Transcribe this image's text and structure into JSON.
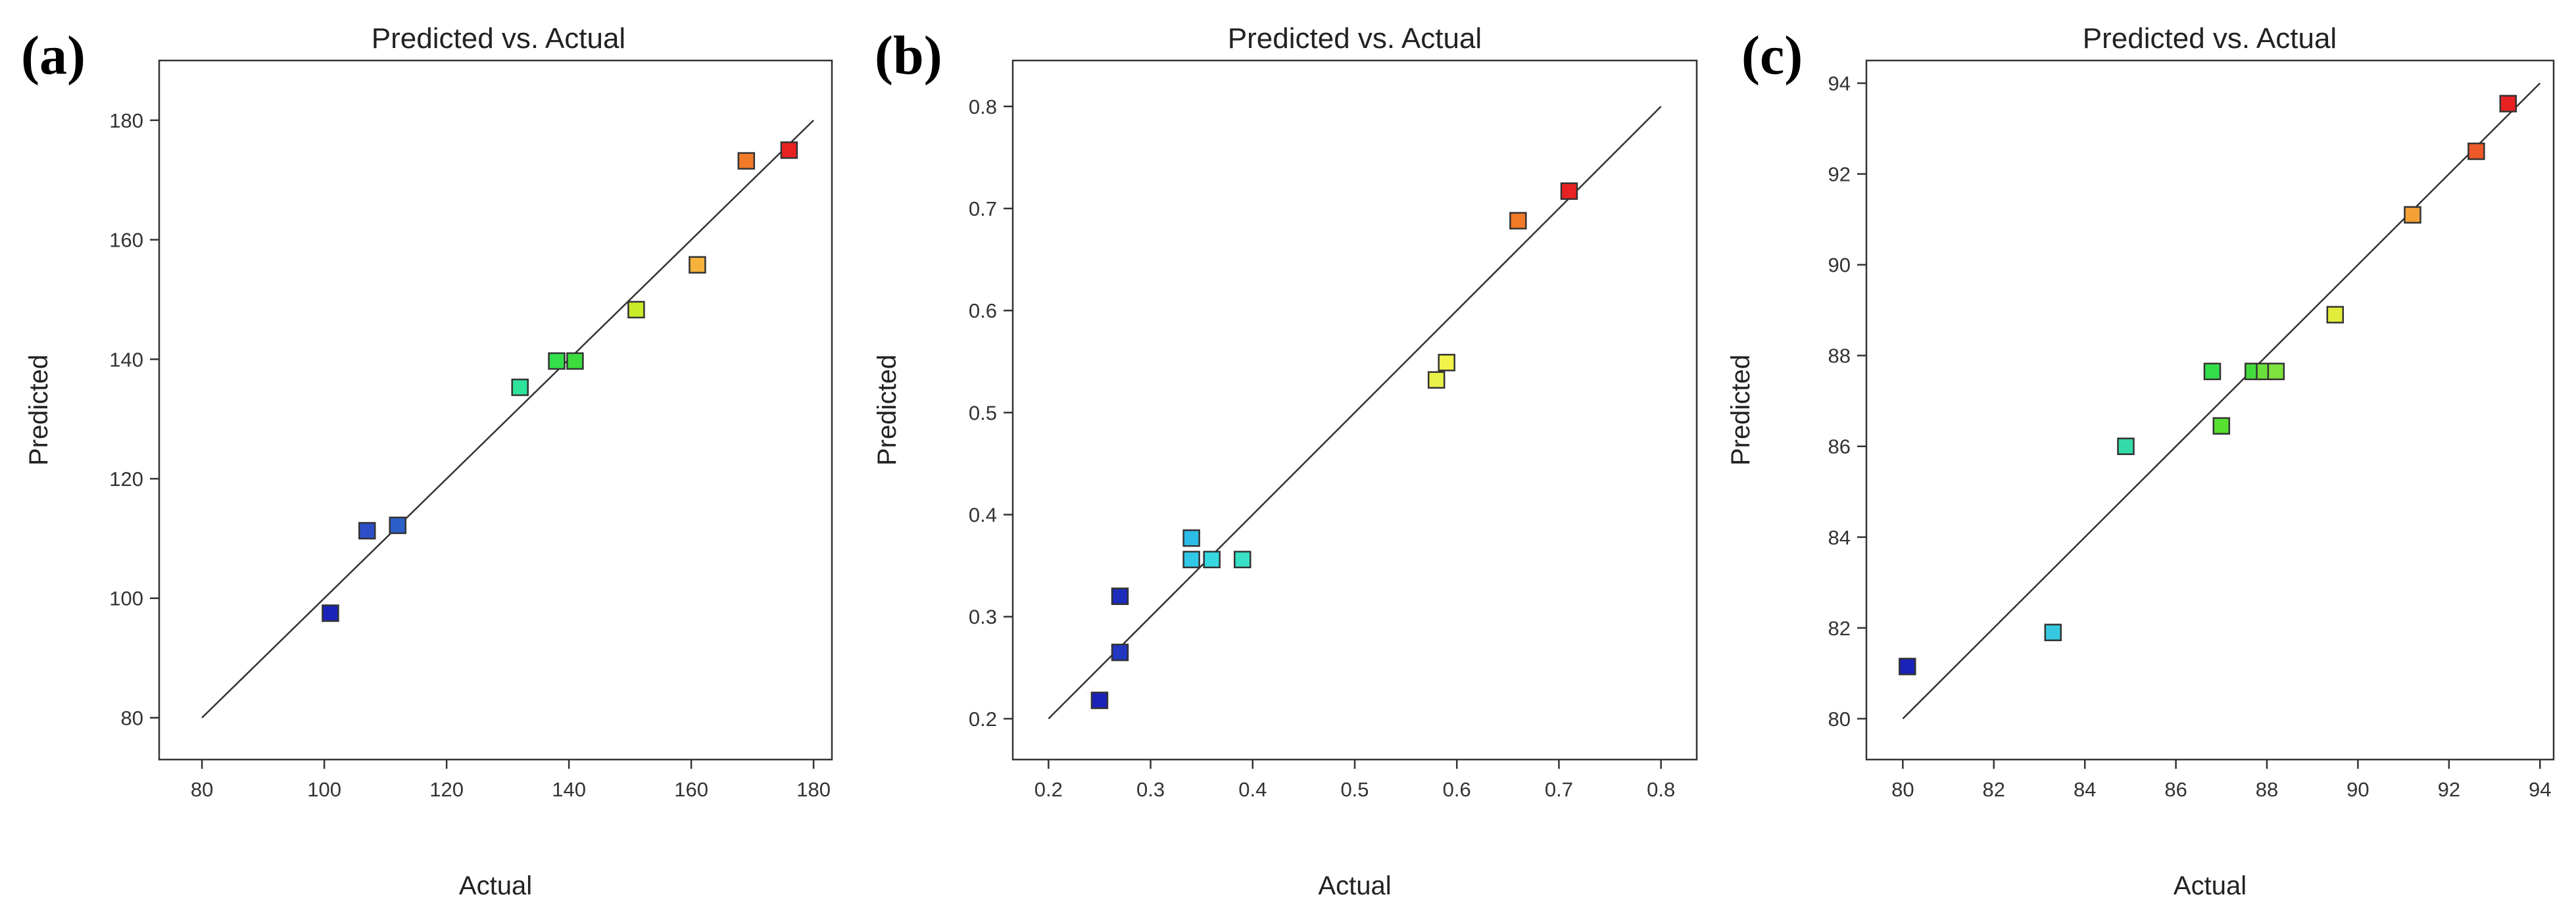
{
  "chart_data": [
    {
      "panel": "(a)",
      "type": "scatter",
      "title": "Predicted vs. Actual",
      "xlabel": "Actual",
      "ylabel": "Predicted",
      "xlim": [
        73,
        183
      ],
      "ylim": [
        73,
        190
      ],
      "xticks": [
        80,
        100,
        120,
        140,
        160,
        180
      ],
      "yticks": [
        80,
        100,
        120,
        140,
        160,
        180
      ],
      "fit_line": [
        [
          80,
          80
        ],
        [
          180,
          180
        ]
      ],
      "points": [
        {
          "x": 101,
          "y": 97.5,
          "color": "#1a22b8"
        },
        {
          "x": 107,
          "y": 111.3,
          "color": "#2d50c8"
        },
        {
          "x": 112,
          "y": 112.2,
          "color": "#2d5fc8"
        },
        {
          "x": 132,
          "y": 135.3,
          "color": "#2ee39a"
        },
        {
          "x": 138,
          "y": 139.7,
          "color": "#34df4c"
        },
        {
          "x": 141,
          "y": 139.7,
          "color": "#3ddc3d"
        },
        {
          "x": 151,
          "y": 148.3,
          "color": "#c8ec2a"
        },
        {
          "x": 161,
          "y": 155.8,
          "color": "#f5b33c"
        },
        {
          "x": 169,
          "y": 173.2,
          "color": "#f07a28"
        },
        {
          "x": 176,
          "y": 175,
          "color": "#e82222"
        }
      ]
    },
    {
      "panel": "(b)",
      "type": "scatter",
      "title": "Predicted vs. Actual",
      "xlabel": "Actual",
      "ylabel": "Predicted",
      "xlim": [
        0.165,
        0.835
      ],
      "ylim": [
        0.16,
        0.845
      ],
      "xticks": [
        0.2,
        0.3,
        0.4,
        0.5,
        0.6,
        0.7,
        0.8
      ],
      "xtick_labels": [
        "0.2",
        "0.3",
        "0.4",
        "0.5",
        "0.6",
        "0.7",
        "0.8"
      ],
      "yticks": [
        0.2,
        0.3,
        0.4,
        0.5,
        0.6,
        0.7,
        0.8
      ],
      "ytick_labels": [
        "0.2",
        "0.3",
        "0.4",
        "0.5",
        "0.6",
        "0.7",
        "0.8"
      ],
      "fit_line": [
        [
          0.2,
          0.2
        ],
        [
          0.8,
          0.8
        ]
      ],
      "points": [
        {
          "x": 0.25,
          "y": 0.218,
          "color": "#1a22b8"
        },
        {
          "x": 0.27,
          "y": 0.265,
          "color": "#2238c0"
        },
        {
          "x": 0.27,
          "y": 0.32,
          "color": "#1e2cbc"
        },
        {
          "x": 0.34,
          "y": 0.377,
          "color": "#2bbde8"
        },
        {
          "x": 0.34,
          "y": 0.356,
          "color": "#2fc8e6"
        },
        {
          "x": 0.36,
          "y": 0.356,
          "color": "#35d8e0"
        },
        {
          "x": 0.39,
          "y": 0.356,
          "color": "#38e0c6"
        },
        {
          "x": 0.58,
          "y": 0.532,
          "color": "#e8f04a"
        },
        {
          "x": 0.59,
          "y": 0.549,
          "color": "#f2f24a"
        },
        {
          "x": 0.66,
          "y": 0.688,
          "color": "#f07a28"
        },
        {
          "x": 0.71,
          "y": 0.717,
          "color": "#e82222"
        }
      ]
    },
    {
      "panel": "(c)",
      "type": "scatter",
      "title": "Predicted vs. Actual",
      "xlabel": "Actual",
      "ylabel": "Predicted",
      "xlim": [
        79.2,
        94.3
      ],
      "ylim": [
        79.1,
        94.5
      ],
      "xticks": [
        80,
        82,
        84,
        86,
        88,
        90,
        92,
        94
      ],
      "yticks": [
        80,
        82,
        84,
        86,
        88,
        90,
        92,
        94
      ],
      "fit_line": [
        [
          80,
          80
        ],
        [
          94,
          94
        ]
      ],
      "points": [
        {
          "x": 80.1,
          "y": 81.15,
          "color": "#1a22b8"
        },
        {
          "x": 83.3,
          "y": 81.9,
          "color": "#35c8e0"
        },
        {
          "x": 84.9,
          "y": 86.0,
          "color": "#34dba8"
        },
        {
          "x": 86.8,
          "y": 87.65,
          "color": "#34df4c"
        },
        {
          "x": 87.0,
          "y": 86.45,
          "color": "#58e030"
        },
        {
          "x": 87.7,
          "y": 87.65,
          "color": "#44dc3d"
        },
        {
          "x": 87.95,
          "y": 87.65,
          "color": "#6ce03a"
        },
        {
          "x": 88.2,
          "y": 87.65,
          "color": "#7ee33e"
        },
        {
          "x": 89.5,
          "y": 88.9,
          "color": "#e2ec3a"
        },
        {
          "x": 91.2,
          "y": 91.1,
          "color": "#f5a035"
        },
        {
          "x": 92.6,
          "y": 92.5,
          "color": "#ec5a2a"
        },
        {
          "x": 93.3,
          "y": 93.55,
          "color": "#e82222"
        }
      ]
    }
  ]
}
